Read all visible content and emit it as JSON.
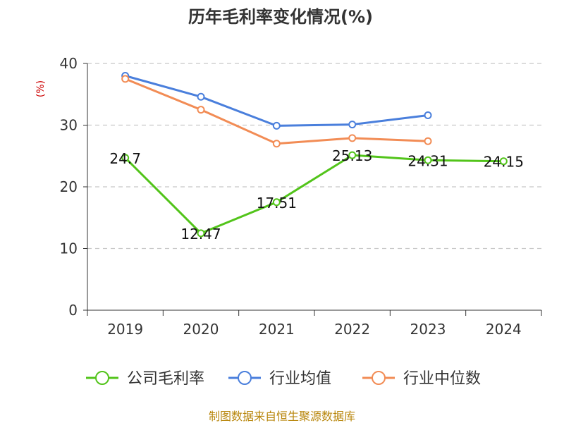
{
  "chart_data": {
    "type": "line",
    "title": "历年毛利率变化情况(%)",
    "unit_label": "(%)",
    "xlabel": "",
    "ylabel": "",
    "categories": [
      "2019",
      "2020",
      "2021",
      "2022",
      "2023",
      "2024"
    ],
    "ylim": [
      0,
      40
    ],
    "yticks": [
      0,
      10,
      20,
      30,
      40
    ],
    "grid": true,
    "legend_position": "bottom",
    "series": [
      {
        "name": "公司毛利率",
        "color": "#52c41a",
        "values": [
          24.7,
          12.47,
          17.51,
          25.13,
          24.31,
          24.15
        ],
        "labels": [
          "24.7",
          "12.47",
          "17.51",
          "25.13",
          "24.31",
          "24.15"
        ]
      },
      {
        "name": "行业均值",
        "color": "#4a7fdc",
        "values": [
          38.0,
          34.6,
          29.9,
          30.1,
          31.6,
          null
        ]
      },
      {
        "name": "行业中位数",
        "color": "#f28c55",
        "values": [
          37.5,
          32.5,
          27.0,
          27.9,
          27.4,
          null
        ]
      }
    ],
    "source": "制图数据来自恒生聚源数据库"
  }
}
